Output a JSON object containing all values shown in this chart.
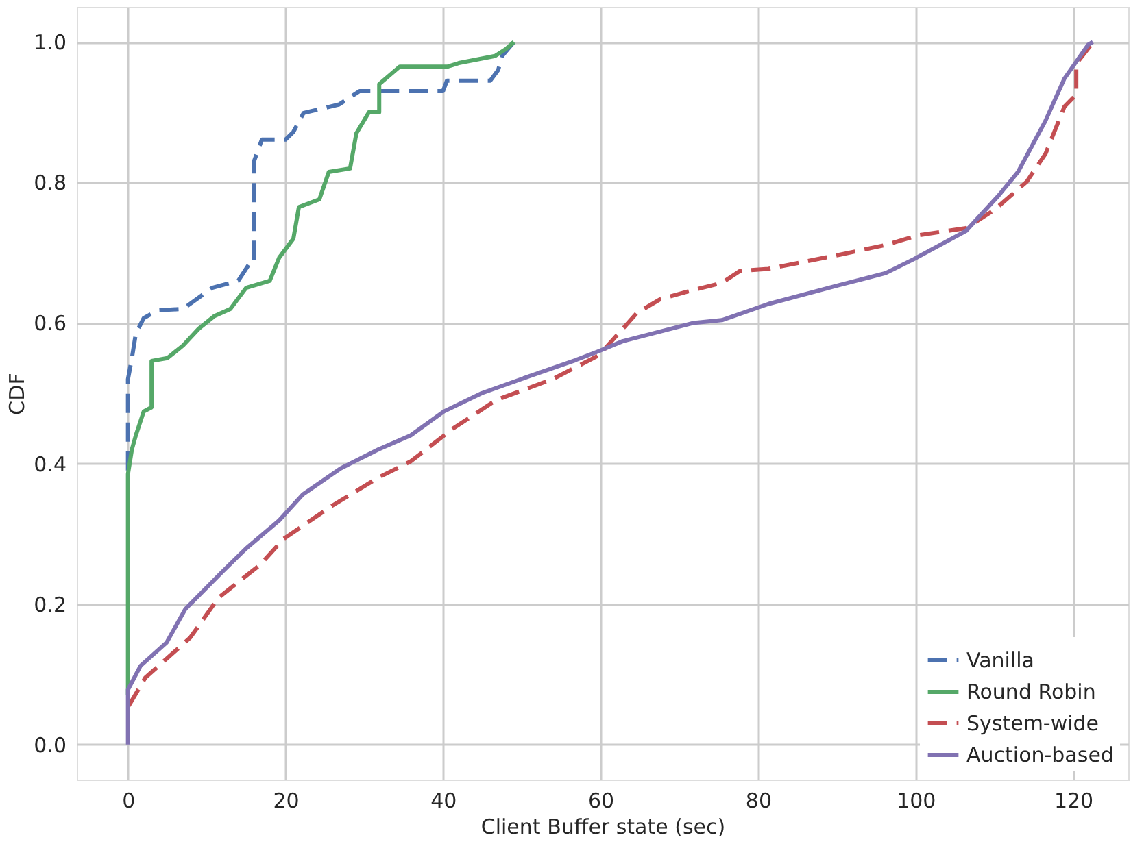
{
  "chart_data": {
    "type": "line",
    "xlabel": "Client Buffer state (sec)",
    "ylabel": "CDF",
    "xlim": [
      -6.5,
      127
    ],
    "ylim": [
      -0.05,
      1.05
    ],
    "xticks": [
      0,
      20,
      40,
      60,
      80,
      100,
      120
    ],
    "yticks": [
      {
        "value": 0,
        "label": "0.0"
      },
      {
        "value": 0.2,
        "label": "0.2"
      },
      {
        "value": 0.4,
        "label": "0.4"
      },
      {
        "value": 0.6,
        "label": "0.6"
      },
      {
        "value": 0.8,
        "label": "0.8"
      },
      {
        "value": 1,
        "label": "1.0"
      }
    ],
    "grid": true,
    "legend": "bottom right",
    "marker": "none",
    "series": [
      {
        "name": "Vanilla",
        "color": "#4c72b0",
        "line_style": "dashed",
        "x": [
          0,
          0,
          0.5,
          1,
          2,
          3.8,
          7,
          10.7,
          14,
          15.5,
          16,
          16,
          17,
          20,
          21,
          22.3,
          26.8,
          29.4,
          40,
          40.5,
          46,
          47,
          47.5,
          49
        ],
        "values": [
          0.39,
          0.52,
          0.55,
          0.585,
          0.607,
          0.618,
          0.62,
          0.65,
          0.66,
          0.686,
          0.686,
          0.83,
          0.861,
          0.861,
          0.872,
          0.899,
          0.911,
          0.93,
          0.93,
          0.945,
          0.945,
          0.96,
          0.98,
          1.0
        ]
      },
      {
        "name": "Round Robin",
        "color": "#55a868",
        "line_style": "solid",
        "x": [
          0,
          0,
          0.5,
          1,
          2,
          3,
          3,
          5,
          7,
          9,
          11,
          13,
          15,
          18,
          19.2,
          21,
          21.7,
          24.3,
          25.5,
          28.2,
          29,
          30.6,
          31.9,
          31.9,
          34.5,
          40.6,
          42,
          46.6,
          48,
          49
        ],
        "values": [
          0.07,
          0.385,
          0.42,
          0.44,
          0.474,
          0.48,
          0.546,
          0.55,
          0.568,
          0.592,
          0.61,
          0.62,
          0.65,
          0.66,
          0.693,
          0.72,
          0.765,
          0.776,
          0.815,
          0.82,
          0.87,
          0.9,
          0.9,
          0.94,
          0.965,
          0.965,
          0.97,
          0.98,
          0.99,
          1.0
        ]
      },
      {
        "name": "System-wide",
        "color": "#c44e52",
        "line_style": "dashed",
        "x": [
          0.1,
          2.2,
          7.9,
          11.5,
          16.8,
          19.8,
          25.8,
          31.8,
          35.9,
          41.3,
          46.7,
          53.9,
          59.8,
          64.6,
          67.6,
          71.8,
          75.4,
          77.7,
          81.3,
          90.3,
          96.2,
          100.4,
          106.4,
          110,
          114.1,
          116.5,
          118.9,
          120.4,
          120.4,
          122.5
        ],
        "values": [
          0.055,
          0.095,
          0.152,
          0.209,
          0.256,
          0.293,
          0.339,
          0.38,
          0.403,
          0.45,
          0.49,
          0.52,
          0.554,
          0.614,
          0.634,
          0.647,
          0.657,
          0.674,
          0.677,
          0.697,
          0.711,
          0.725,
          0.735,
          0.761,
          0.801,
          0.841,
          0.908,
          0.925,
          0.969,
          0.999
        ]
      },
      {
        "name": "Auction-based",
        "color": "#8172b2",
        "line_style": "solid",
        "x": [
          0,
          0,
          1.6,
          4.9,
          7.3,
          12,
          15,
          19.2,
          22.2,
          27,
          31.8,
          35.9,
          40.1,
          44.9,
          50.9,
          56.8,
          59.8,
          62.8,
          71.8,
          75.4,
          81.3,
          90.3,
          96.2,
          99.8,
          106.4,
          110.5,
          113,
          116.5,
          118.9,
          121.9,
          122.5
        ],
        "values": [
          0.0,
          0.078,
          0.112,
          0.145,
          0.193,
          0.246,
          0.279,
          0.319,
          0.356,
          0.393,
          0.42,
          0.44,
          0.474,
          0.5,
          0.524,
          0.547,
          0.56,
          0.574,
          0.6,
          0.604,
          0.627,
          0.654,
          0.671,
          0.691,
          0.731,
          0.781,
          0.815,
          0.888,
          0.948,
          0.996,
          1.0
        ]
      }
    ]
  }
}
